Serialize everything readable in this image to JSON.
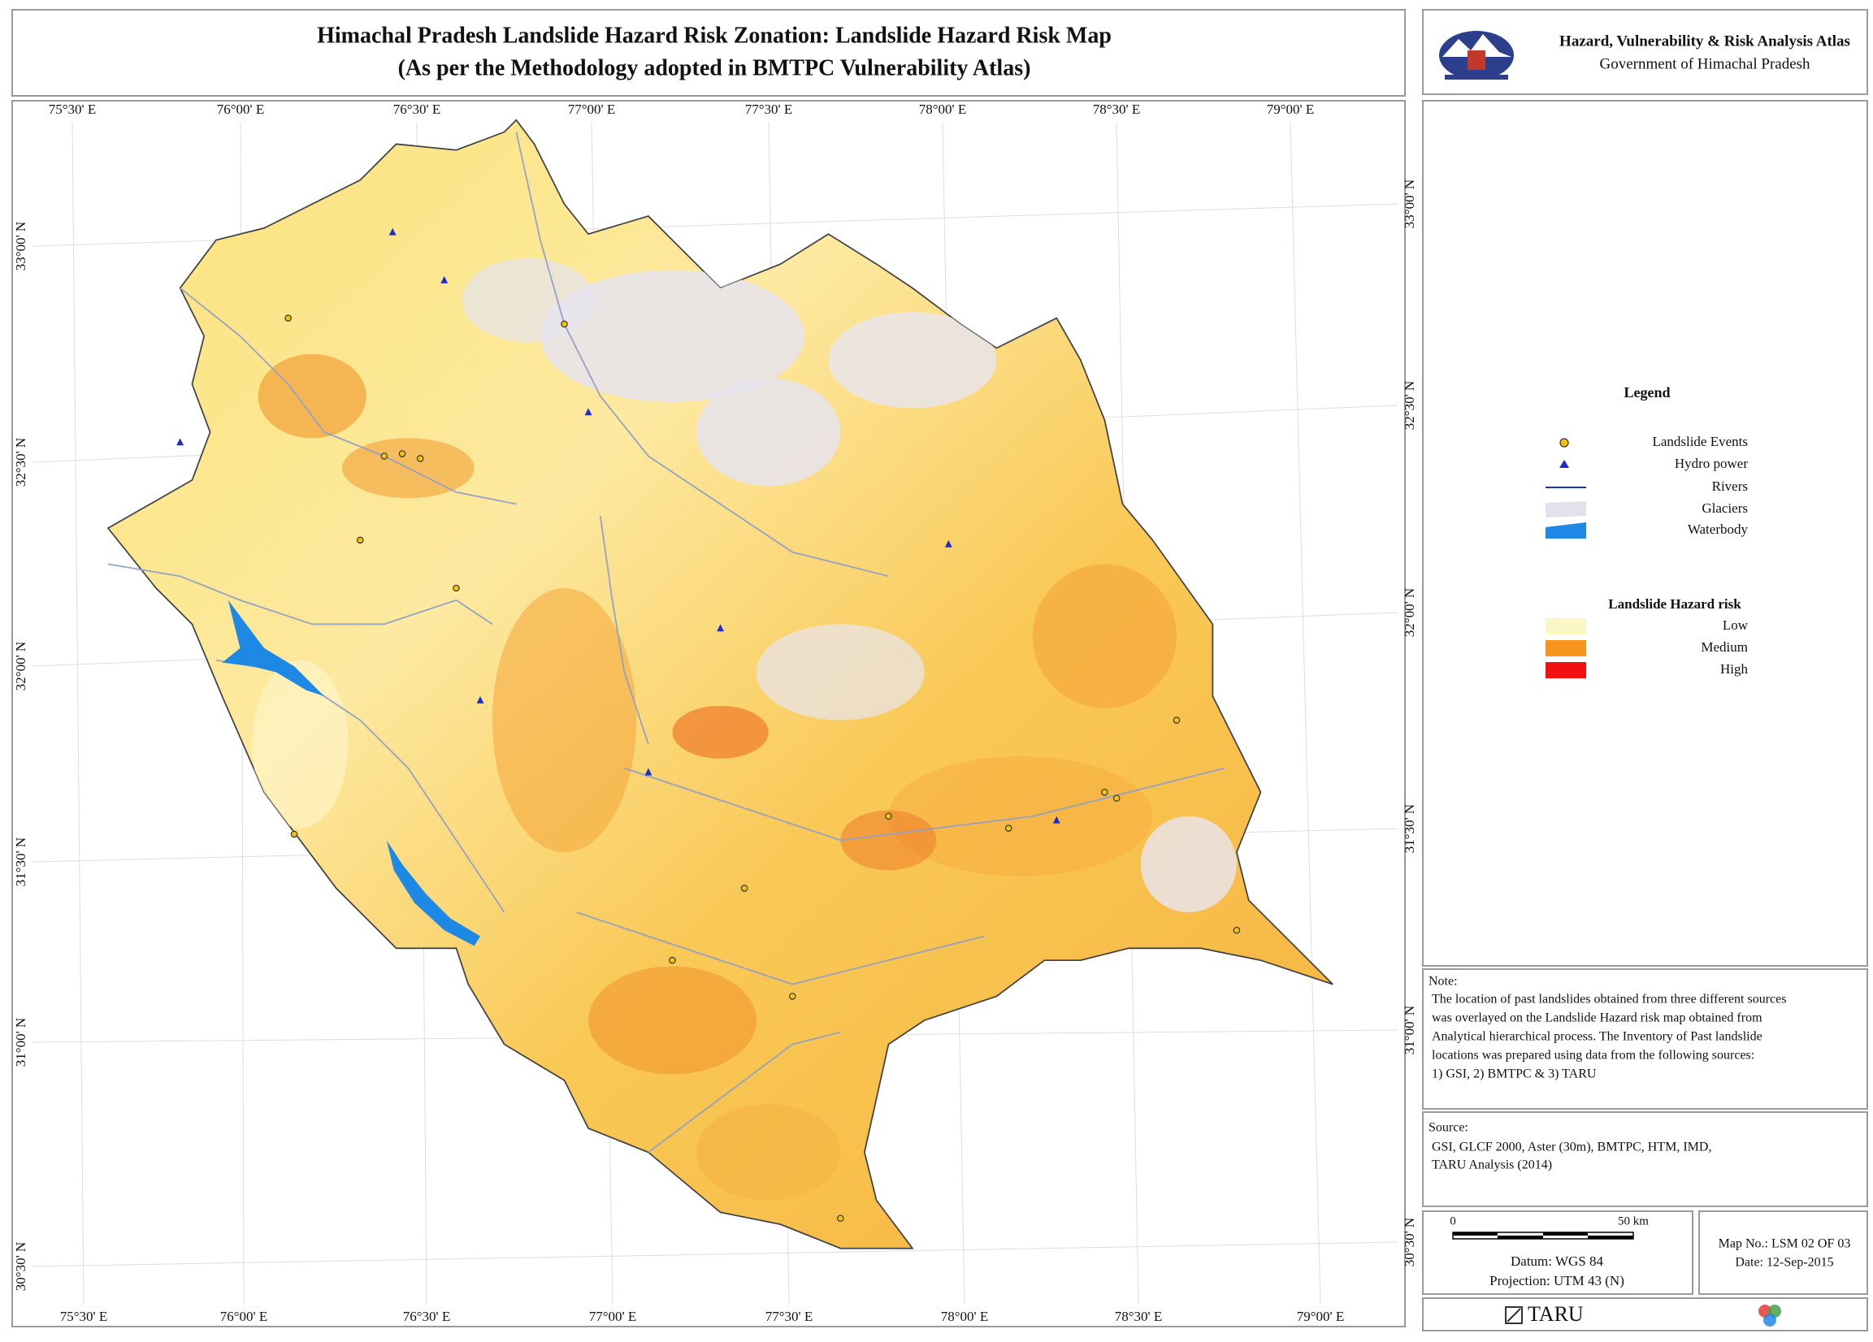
{
  "header": {
    "title_line1": "Himachal Pradesh Landslide Hazard Risk Zonation: Landslide Hazard Risk Map",
    "title_line2": "(As per the Methodology adopted in BMTPC Vulnerability Atlas)",
    "atlas": "Hazard, Vulnerability & Risk Analysis Atlas",
    "government": "Government of Himachal Pradesh"
  },
  "graticule": {
    "longitudes": [
      "75°30' E",
      "76°00' E",
      "76°30' E",
      "77°00' E",
      "77°30' E",
      "78°00' E",
      "78°30' E",
      "79°00' E"
    ],
    "latitudes": [
      "33°00' N",
      "32°30' N",
      "32°00' N",
      "31°30' N",
      "31°00' N",
      "30°30' N"
    ]
  },
  "legend": {
    "title": "Legend",
    "items": [
      "Landslide Events",
      "Hydro power",
      "Rivers",
      "Glaciers",
      "Waterbody"
    ],
    "hazard_title": "Landslide Hazard risk",
    "hazard_classes": [
      "Low",
      "Medium",
      "High"
    ]
  },
  "note": {
    "heading": "Note:",
    "lines": [
      "The location of past landslides obtained from three different sources",
      "was overlayed on the Landslide Hazard risk map obtained from",
      "Analytical hierarchical process. The Inventory of Past landslide",
      "locations was prepared using data from the following sources:",
      "1) GSI, 2) BMTPC & 3) TARU"
    ]
  },
  "source": {
    "heading": "Source:",
    "lines": [
      "GSI, GLCF 2000, Aster (30m), BMTPC, HTM, IMD,",
      "TARU Analysis (2014)"
    ]
  },
  "scale_bar": {
    "start": "0",
    "end": "50 km"
  },
  "datum": "Datum: WGS 84",
  "projection": "Projection: UTM 43 (N)",
  "map_no": "Map No.: LSM 02 OF 03",
  "date": "Date: 12-Sep-2015",
  "logo": "TARU"
}
